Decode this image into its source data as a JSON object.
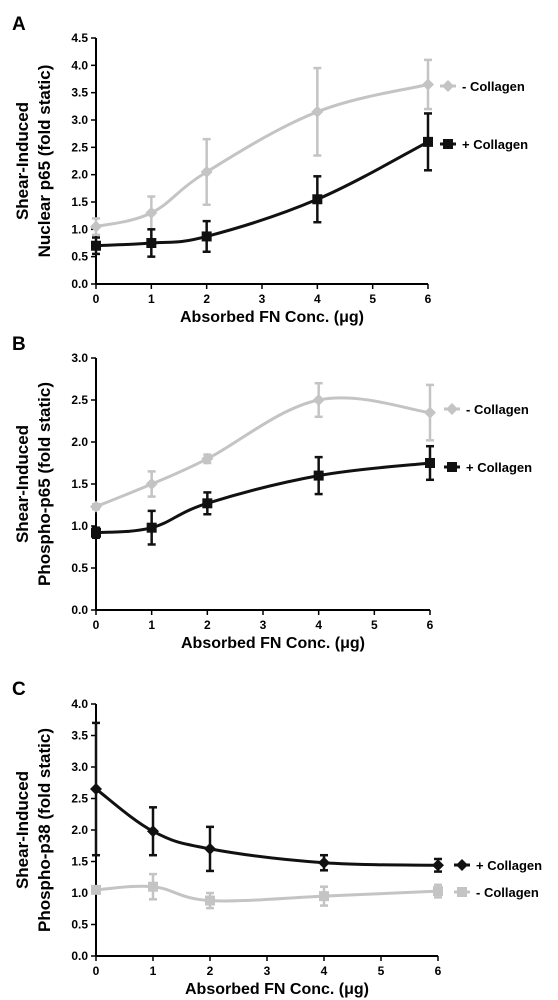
{
  "colors": {
    "plus_collagen": "#111111",
    "minus_collagen": "#c4c4c4",
    "axis": "#000000"
  },
  "chart_data": [
    {
      "panel_label": "A",
      "type": "line",
      "ylabel_line1": "Shear-Induced",
      "ylabel_line2": "Nuclear p65 (fold static)",
      "xlabel": "Absorbed FN Conc. (μg)",
      "x_ticks": [
        0,
        1,
        2,
        3,
        4,
        5,
        6
      ],
      "xlim": [
        0,
        6
      ],
      "y_ticks": [
        "0.0",
        "0.5",
        "1.0",
        "1.5",
        "2.0",
        "2.5",
        "3.0",
        "3.5",
        "4.0",
        "4.5"
      ],
      "ylim": [
        0,
        4.5
      ],
      "legend_position": "right",
      "series": [
        {
          "name": "- Collagen",
          "color_key": "minus_collagen",
          "marker": "diamond",
          "x": [
            0,
            1,
            2,
            4,
            6
          ],
          "y": [
            1.05,
            1.3,
            2.05,
            3.15,
            3.65
          ],
          "err": [
            0.15,
            0.3,
            0.6,
            0.8,
            0.45
          ]
        },
        {
          "name": "+ Collagen",
          "color_key": "plus_collagen",
          "marker": "square",
          "x": [
            0,
            1,
            2,
            4,
            6
          ],
          "y": [
            0.7,
            0.75,
            0.87,
            1.55,
            2.6
          ],
          "err": [
            0.15,
            0.25,
            0.28,
            0.42,
            0.52
          ]
        }
      ]
    },
    {
      "panel_label": "B",
      "type": "line",
      "ylabel_line1": "Shear-Induced",
      "ylabel_line2": "Phospho-p65 (fold static)",
      "xlabel": "Absorbed FN Conc. (μg)",
      "x_ticks": [
        0,
        1,
        2,
        3,
        4,
        5,
        6
      ],
      "xlim": [
        0,
        6
      ],
      "y_ticks": [
        "0.0",
        "0.5",
        "1.0",
        "1.5",
        "2.0",
        "2.5",
        "3.0"
      ],
      "ylim": [
        0,
        3.0
      ],
      "legend_position": "right",
      "series": [
        {
          "name": "- Collagen",
          "color_key": "minus_collagen",
          "marker": "diamond",
          "x": [
            0,
            1,
            2,
            4,
            6
          ],
          "y": [
            1.23,
            1.5,
            1.8,
            2.5,
            2.35
          ],
          "err": [
            0.03,
            0.15,
            0.05,
            0.2,
            0.33
          ]
        },
        {
          "name": "+ Collagen",
          "color_key": "plus_collagen",
          "marker": "square",
          "x": [
            0,
            1,
            2,
            4,
            6
          ],
          "y": [
            0.92,
            0.98,
            1.27,
            1.6,
            1.75
          ],
          "err": [
            0.06,
            0.2,
            0.13,
            0.22,
            0.2
          ]
        }
      ]
    },
    {
      "panel_label": "C",
      "type": "line",
      "ylabel_line1": "Shear-Induced",
      "ylabel_line2": "Phospho-p38 (fold static)",
      "xlabel": "Absorbed FN Conc. (μg)",
      "x_ticks": [
        0,
        1,
        2,
        3,
        4,
        5,
        6
      ],
      "xlim": [
        0,
        6
      ],
      "y_ticks": [
        "0.0",
        "0.5",
        "1.0",
        "1.5",
        "2.0",
        "2.5",
        "3.0",
        "3.5",
        "4.0"
      ],
      "ylim": [
        0,
        4.0
      ],
      "legend_position": "right",
      "series": [
        {
          "name": "+ Collagen",
          "color_key": "plus_collagen",
          "marker": "diamond",
          "x": [
            0,
            1,
            2,
            4,
            6
          ],
          "y": [
            2.65,
            1.98,
            1.7,
            1.48,
            1.44
          ],
          "err": [
            1.05,
            0.38,
            0.35,
            0.12,
            0.1
          ]
        },
        {
          "name": "- Collagen",
          "color_key": "minus_collagen",
          "marker": "square",
          "x": [
            0,
            1,
            2,
            4,
            6
          ],
          "y": [
            1.05,
            1.1,
            0.88,
            0.95,
            1.03
          ],
          "err": [
            0.05,
            0.2,
            0.12,
            0.15,
            0.1
          ]
        }
      ]
    }
  ]
}
